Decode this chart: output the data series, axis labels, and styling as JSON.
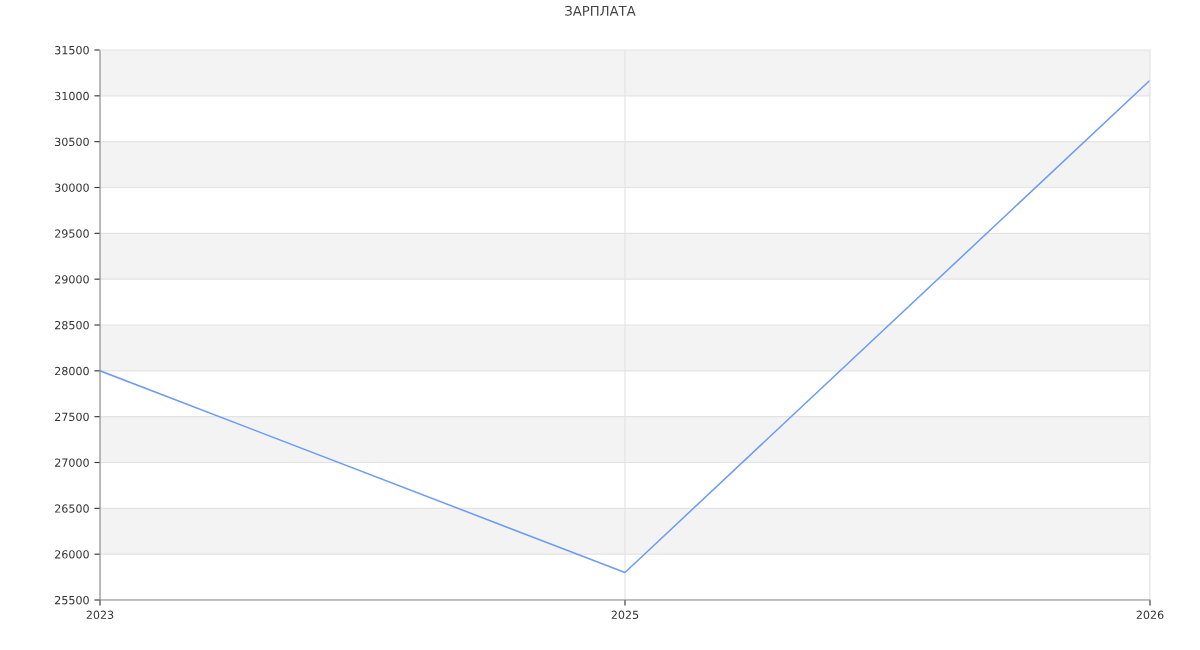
{
  "chart_data": {
    "type": "line",
    "title": "ЗАРПЛАТА",
    "categories": [
      "2023",
      "2025",
      "2026"
    ],
    "series": [
      {
        "color": "#6d9cf6",
        "values": [
          28000,
          25800,
          31170
        ]
      }
    ],
    "ylim": [
      25500,
      31500
    ],
    "yticks": [
      25500,
      26000,
      26500,
      27000,
      27500,
      28000,
      28500,
      29000,
      29500,
      30000,
      30500,
      31000,
      31500
    ],
    "grid": true,
    "marker": "none",
    "line_style": "solid"
  }
}
